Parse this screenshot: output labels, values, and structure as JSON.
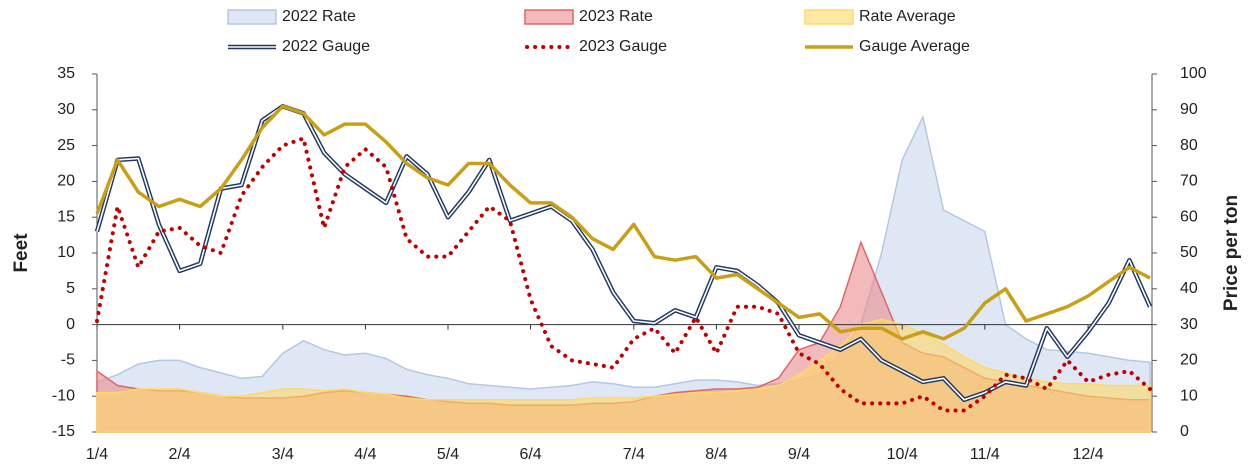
{
  "chart_data": {
    "type": "combo",
    "y_label": "Feet",
    "y2_label": "Price per ton",
    "legend": "top",
    "categories": [
      "1/4",
      null,
      null,
      null,
      "2/4",
      null,
      null,
      null,
      null,
      "3/4",
      null,
      null,
      null,
      "4/4",
      null,
      null,
      null,
      "5/4",
      null,
      null,
      null,
      "6/4",
      null,
      null,
      null,
      null,
      "7/4",
      null,
      null,
      null,
      "8/4",
      null,
      null,
      null,
      "9/4",
      null,
      null,
      null,
      null,
      "10/4",
      null,
      null,
      null,
      "11/4",
      null,
      null,
      null,
      null,
      "12/4",
      null,
      null,
      null
    ],
    "ylim": [
      -15,
      35
    ],
    "yticks": [
      -15,
      -10,
      -5,
      0,
      5,
      10,
      15,
      20,
      25,
      30,
      35
    ],
    "y2lim": [
      0,
      100
    ],
    "y2ticks": [
      0,
      10,
      20,
      30,
      40,
      50,
      60,
      70,
      80,
      90,
      100
    ],
    "series": [
      {
        "name": "2022 Rate",
        "kind": "area",
        "axis": "y2",
        "color": "#b4c7e7",
        "fill": "#c9d7ef",
        "values": [
          14,
          16,
          19,
          20,
          20,
          18,
          16.5,
          15,
          15.5,
          22,
          25.5,
          23,
          21.5,
          22,
          20.5,
          17.5,
          16,
          15,
          13.5,
          13,
          12.5,
          12,
          12.5,
          13,
          14,
          13.5,
          12.5,
          12.5,
          13.5,
          14.5,
          14.5,
          14,
          13,
          13.5,
          14.5,
          16,
          22,
          30,
          50,
          76,
          88,
          62,
          59,
          56,
          30,
          26,
          23,
          22.5,
          22,
          21,
          20,
          19.5
        ]
      },
      {
        "name": "2023 Rate",
        "kind": "area",
        "axis": "y2",
        "color": "#e06666",
        "fill": "#ea8c8c",
        "values": [
          17,
          13,
          12,
          11.5,
          11.5,
          11,
          10,
          9.5,
          9.5,
          9.5,
          10,
          11,
          11.5,
          11,
          10.5,
          10,
          9,
          8.5,
          8,
          8,
          7.5,
          7.5,
          7.5,
          7.5,
          8,
          8,
          8.5,
          10,
          11,
          11.5,
          12,
          12,
          12.5,
          15,
          23,
          25,
          35,
          53,
          39,
          25,
          22,
          21,
          18,
          15,
          14,
          13,
          12,
          11,
          10,
          9.5,
          9,
          9
        ]
      },
      {
        "name": "Rate Average",
        "kind": "area",
        "axis": "y2",
        "color": "#ffd966",
        "fill": "#ffd966",
        "values": [
          11,
          11,
          12,
          12,
          12,
          11,
          10,
          10,
          11,
          12,
          12,
          11.5,
          12,
          11,
          10.5,
          9.5,
          9,
          9,
          9,
          9,
          9,
          9,
          9,
          9,
          9.5,
          9.5,
          9.5,
          10,
          10.5,
          11,
          11,
          11.5,
          12,
          13,
          16,
          20,
          24,
          30,
          31.5,
          30,
          27.5,
          24.5,
          21,
          18,
          16.5,
          15,
          14,
          13.5,
          13.5,
          13,
          13,
          13
        ]
      },
      {
        "name": "2022 Gauge",
        "kind": "double-line",
        "axis": "y",
        "color": "#1f3864",
        "values": [
          13,
          23,
          23.2,
          14,
          7.5,
          8.5,
          19,
          19.5,
          28.5,
          30.5,
          29.5,
          24,
          21,
          19,
          17,
          23.5,
          21,
          15,
          18.5,
          23,
          14.5,
          15.5,
          16.5,
          14.5,
          10.5,
          4.5,
          0.5,
          0.2,
          2,
          1,
          8,
          7.5,
          5.5,
          3,
          -1.5,
          -2.5,
          -3.5,
          -2,
          -5,
          -6.5,
          -8,
          -7.5,
          -10.5,
          -9.5,
          -8,
          -8.5,
          -0.5,
          -4.5,
          -1,
          3,
          9,
          2.5
        ]
      },
      {
        "name": "2023 Gauge",
        "kind": "dotted",
        "axis": "y",
        "color": "#c00000",
        "values": [
          0.5,
          16.5,
          8,
          13,
          13.5,
          11,
          10,
          18,
          22,
          25,
          26,
          13.5,
          22,
          24.5,
          22,
          12,
          9.5,
          9.5,
          13,
          16.5,
          14.5,
          3.5,
          -3,
          -5,
          -5.5,
          -6,
          -2,
          -0.5,
          -4,
          1,
          -4,
          2.5,
          2.5,
          1.5,
          -4,
          -5.5,
          -9,
          -11,
          -11,
          -11,
          -10,
          -12,
          -12,
          -10,
          -7,
          -7.5,
          -9,
          -5,
          -8,
          -7,
          -6.5,
          -9
        ]
      },
      {
        "name": "Gauge Average",
        "kind": "line",
        "axis": "y",
        "color": "#c9a015",
        "values": [
          15.5,
          23,
          18.5,
          16.5,
          17.5,
          16.5,
          19,
          23,
          27.5,
          30.5,
          29.5,
          26.5,
          28,
          28,
          25.5,
          22.5,
          20.5,
          19.5,
          22.5,
          22.5,
          19.5,
          17,
          17,
          15,
          12,
          10.5,
          14,
          9.5,
          9,
          9.5,
          6.5,
          7,
          5,
          3,
          1,
          1.5,
          -1,
          -0.5,
          -0.5,
          -2,
          -1,
          -2,
          -0.5,
          3,
          5,
          0.5,
          1.5,
          2.5,
          4,
          6,
          8,
          6.5
        ]
      }
    ]
  }
}
